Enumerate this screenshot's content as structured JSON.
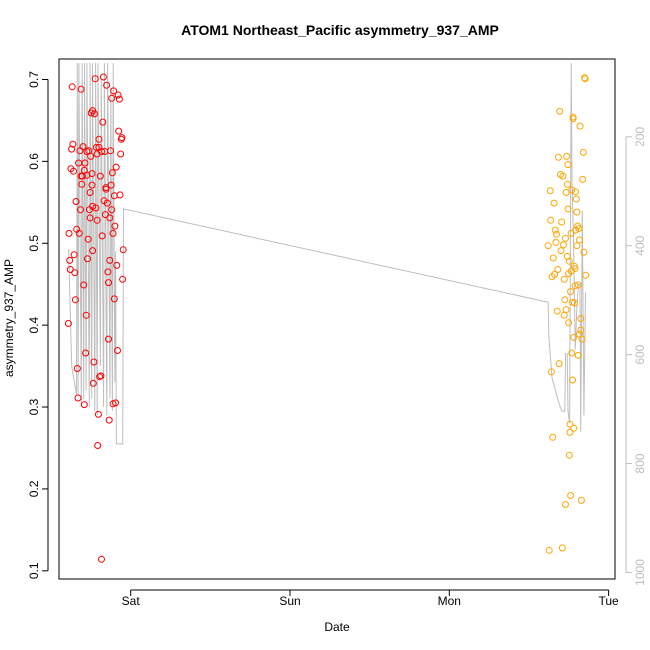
{
  "chart_data": {
    "type": "scatter",
    "title": "ATOM1 Northeast_Pacific asymmetry_937_AMP",
    "xlabel": "Date",
    "ylabel": "asymmetry_937_AMP",
    "x_tick_labels": [
      "Sat",
      "Sun",
      "Mon",
      "Tue"
    ],
    "x_tick_day_values": [
      1,
      2,
      3,
      4
    ],
    "xlim": [
      0.55,
      4.04
    ],
    "ylim": [
      0.09,
      0.725
    ],
    "y_ticks": [
      0.1,
      0.2,
      0.3,
      0.4,
      0.5,
      0.6,
      0.7
    ],
    "y2_ticks": [
      200,
      400,
      600,
      800,
      1000
    ],
    "y2lim": [
      1012,
      57
    ],
    "grid": false,
    "colors": {
      "red_series": "#ff0000",
      "orange_series": "#ffa500",
      "line": "#bebebe",
      "right_axis": "#bdbdbd"
    },
    "series": [
      {
        "color": "red",
        "points": [
          [
            0.609,
            0.402
          ],
          [
            0.613,
            0.512
          ],
          [
            0.617,
            0.479
          ],
          [
            0.621,
            0.468
          ],
          [
            0.625,
            0.591
          ],
          [
            0.629,
            0.615
          ],
          [
            0.633,
            0.691
          ],
          [
            0.637,
            0.621
          ],
          [
            0.641,
            0.588
          ],
          [
            0.645,
            0.486
          ],
          [
            0.649,
            0.464
          ],
          [
            0.653,
            0.431
          ],
          [
            0.657,
            0.551
          ],
          [
            0.661,
            0.517
          ],
          [
            0.665,
            0.347
          ],
          [
            0.669,
            0.311
          ],
          [
            0.673,
            0.598
          ],
          [
            0.677,
            0.512
          ],
          [
            0.681,
            0.613
          ],
          [
            0.685,
            0.541
          ],
          [
            0.689,
            0.688
          ],
          [
            0.693,
            0.572
          ],
          [
            0.697,
            0.582
          ],
          [
            0.701,
            0.618
          ],
          [
            0.705,
            0.449
          ],
          [
            0.709,
            0.303
          ],
          [
            0.713,
            0.598
          ],
          [
            0.717,
            0.366
          ],
          [
            0.721,
            0.412
          ],
          [
            0.725,
            0.583
          ],
          [
            0.729,
            0.481
          ],
          [
            0.733,
            0.505
          ],
          [
            0.737,
            0.613
          ],
          [
            0.741,
            0.541
          ],
          [
            0.745,
            0.562
          ],
          [
            0.749,
            0.606
          ],
          [
            0.753,
            0.659
          ],
          [
            0.757,
            0.571
          ],
          [
            0.761,
            0.662
          ],
          [
            0.765,
            0.329
          ],
          [
            0.769,
            0.355
          ],
          [
            0.773,
            0.658
          ],
          [
            0.777,
            0.701
          ],
          [
            0.781,
            0.543
          ],
          [
            0.785,
            0.617
          ],
          [
            0.789,
            0.609
          ],
          [
            0.793,
            0.253
          ],
          [
            0.797,
            0.291
          ],
          [
            0.801,
            0.627
          ],
          [
            0.805,
            0.337
          ],
          [
            0.809,
            0.582
          ],
          [
            0.813,
            0.338
          ],
          [
            0.817,
            0.114
          ],
          [
            0.821,
            0.509
          ],
          [
            0.825,
            0.648
          ],
          [
            0.829,
            0.703
          ],
          [
            0.833,
            0.552
          ],
          [
            0.837,
            0.612
          ],
          [
            0.841,
            0.535
          ],
          [
            0.845,
            0.566
          ],
          [
            0.849,
            0.693
          ],
          [
            0.853,
            0.549
          ],
          [
            0.857,
            0.465
          ],
          [
            0.861,
            0.383
          ],
          [
            0.865,
            0.284
          ],
          [
            0.869,
            0.531
          ],
          [
            0.873,
            0.613
          ],
          [
            0.877,
            0.571
          ],
          [
            0.881,
            0.677
          ],
          [
            0.885,
            0.586
          ],
          [
            0.889,
            0.304
          ],
          [
            0.893,
            0.686
          ],
          [
            0.897,
            0.558
          ],
          [
            0.901,
            0.521
          ],
          [
            0.905,
            0.305
          ],
          [
            0.909,
            0.593
          ],
          [
            0.913,
            0.473
          ],
          [
            0.917,
            0.369
          ],
          [
            0.921,
            0.681
          ],
          [
            0.925,
            0.637
          ],
          [
            0.929,
            0.676
          ],
          [
            0.933,
            0.559
          ],
          [
            0.937,
            0.609
          ],
          [
            0.941,
            0.627
          ],
          [
            0.945,
            0.629
          ],
          [
            0.949,
            0.456
          ],
          [
            0.953,
            0.492
          ],
          [
            0.757,
            0.585
          ],
          [
            0.789,
            0.528
          ],
          [
            0.761,
            0.491
          ],
          [
            0.861,
            0.452
          ],
          [
            0.745,
            0.531
          ],
          [
            0.845,
            0.568
          ],
          [
            0.889,
            0.512
          ],
          [
            0.801,
            0.617
          ],
          [
            0.817,
            0.612
          ],
          [
            0.869,
            0.479
          ],
          [
            0.725,
            0.612
          ],
          [
            0.689,
            0.582
          ],
          [
            0.709,
            0.589
          ],
          [
            0.761,
            0.545
          ],
          [
            0.881,
            0.541
          ],
          [
            0.897,
            0.432
          ]
        ]
      },
      {
        "color": "orange",
        "points": [
          [
            3.621,
            0.497
          ],
          [
            3.627,
            0.125
          ],
          [
            3.633,
            0.564
          ],
          [
            3.637,
            0.528
          ],
          [
            3.641,
            0.343
          ],
          [
            3.645,
            0.459
          ],
          [
            3.649,
            0.263
          ],
          [
            3.653,
            0.482
          ],
          [
            3.657,
            0.549
          ],
          [
            3.661,
            0.462
          ],
          [
            3.665,
            0.516
          ],
          [
            3.669,
            0.501
          ],
          [
            3.673,
            0.511
          ],
          [
            3.677,
            0.417
          ],
          [
            3.681,
            0.468
          ],
          [
            3.685,
            0.605
          ],
          [
            3.689,
            0.353
          ],
          [
            3.693,
            0.661
          ],
          [
            3.697,
            0.584
          ],
          [
            3.701,
            0.491
          ],
          [
            3.705,
            0.526
          ],
          [
            3.709,
            0.128
          ],
          [
            3.713,
            0.582
          ],
          [
            3.717,
            0.498
          ],
          [
            3.721,
            0.412
          ],
          [
            3.725,
            0.431
          ],
          [
            3.729,
            0.181
          ],
          [
            3.733,
            0.562
          ],
          [
            3.737,
            0.606
          ],
          [
            3.741,
            0.484
          ],
          [
            3.745,
            0.596
          ],
          [
            3.749,
            0.403
          ],
          [
            3.753,
            0.241
          ],
          [
            3.757,
            0.269
          ],
          [
            3.761,
            0.192
          ],
          [
            3.765,
            0.512
          ],
          [
            3.769,
            0.366
          ],
          [
            3.773,
            0.428
          ],
          [
            3.777,
            0.652
          ],
          [
            3.781,
            0.385
          ],
          [
            3.785,
            0.427
          ],
          [
            3.789,
            0.469
          ],
          [
            3.793,
            0.563
          ],
          [
            3.797,
            0.554
          ],
          [
            3.801,
            0.538
          ],
          [
            3.805,
            0.521
          ],
          [
            3.809,
            0.449
          ],
          [
            3.813,
            0.518
          ],
          [
            3.817,
            0.504
          ],
          [
            3.821,
            0.643
          ],
          [
            3.825,
            0.408
          ],
          [
            3.829,
            0.186
          ],
          [
            3.833,
            0.383
          ],
          [
            3.837,
            0.578
          ],
          [
            3.841,
            0.611
          ],
          [
            3.845,
            0.489
          ],
          [
            3.849,
            0.702
          ],
          [
            3.853,
            0.701
          ],
          [
            3.857,
            0.461
          ],
          [
            3.765,
            0.466
          ],
          [
            3.773,
            0.333
          ],
          [
            3.781,
            0.274
          ],
          [
            3.789,
            0.448
          ],
          [
            3.749,
            0.463
          ],
          [
            3.757,
            0.279
          ],
          [
            3.745,
            0.542
          ],
          [
            3.733,
            0.419
          ],
          [
            3.741,
            0.572
          ],
          [
            3.721,
            0.456
          ],
          [
            3.793,
            0.516
          ],
          [
            3.801,
            0.497
          ],
          [
            3.809,
            0.363
          ],
          [
            3.817,
            0.389
          ],
          [
            3.825,
            0.394
          ],
          [
            3.777,
            0.654
          ],
          [
            3.769,
            0.565
          ],
          [
            3.761,
            0.441
          ],
          [
            3.785,
            0.472
          ],
          [
            3.753,
            0.478
          ],
          [
            3.729,
            0.506
          ]
        ]
      }
    ],
    "line_series": {
      "color": "gray",
      "points": [
        [
          0.61,
          0.493
        ],
        [
          0.63,
          0.35
        ],
        [
          0.66,
          0.315
        ],
        [
          0.665,
          0.72
        ],
        [
          0.67,
          0.315
        ],
        [
          0.675,
          0.72
        ],
        [
          0.69,
          0.305
        ],
        [
          0.695,
          0.72
        ],
        [
          0.705,
          0.31
        ],
        [
          0.71,
          0.72
        ],
        [
          0.72,
          0.32
        ],
        [
          0.725,
          0.72
        ],
        [
          0.74,
          0.3
        ],
        [
          0.745,
          0.72
        ],
        [
          0.755,
          0.31
        ],
        [
          0.76,
          0.72
        ],
        [
          0.775,
          0.295
        ],
        [
          0.78,
          0.72
        ],
        [
          0.79,
          0.29
        ],
        [
          0.795,
          0.72
        ],
        [
          0.81,
          0.35
        ],
        [
          0.815,
          0.7
        ],
        [
          0.83,
          0.3
        ],
        [
          0.835,
          0.72
        ],
        [
          0.85,
          0.29
        ],
        [
          0.855,
          0.72
        ],
        [
          0.87,
          0.31
        ],
        [
          0.875,
          0.69
        ],
        [
          0.885,
          0.295
        ],
        [
          0.89,
          0.72
        ],
        [
          0.9,
          0.33
        ],
        [
          0.905,
          0.49
        ],
        [
          0.91,
          0.255
        ],
        [
          0.95,
          0.255
        ],
        [
          0.955,
          0.542
        ],
        [
          3.62,
          0.428
        ],
        [
          3.625,
          0.385
        ],
        [
          3.645,
          0.335
        ],
        [
          3.66,
          0.325
        ],
        [
          3.68,
          0.31
        ],
        [
          3.705,
          0.295
        ],
        [
          3.725,
          0.295
        ],
        [
          3.73,
          0.365
        ],
        [
          3.74,
          0.365
        ],
        [
          3.745,
          0.295
        ],
        [
          3.755,
          0.28
        ],
        [
          3.765,
          0.72
        ],
        [
          3.77,
          0.575
        ],
        [
          3.78,
          0.5
        ],
        [
          3.79,
          0.37
        ],
        [
          3.8,
          0.42
        ],
        [
          3.81,
          0.45
        ],
        [
          3.82,
          0.45
        ],
        [
          3.825,
          0.27
        ],
        [
          3.835,
          0.54
        ],
        [
          3.845,
          0.29
        ],
        [
          3.855,
          0.44
        ]
      ]
    }
  }
}
